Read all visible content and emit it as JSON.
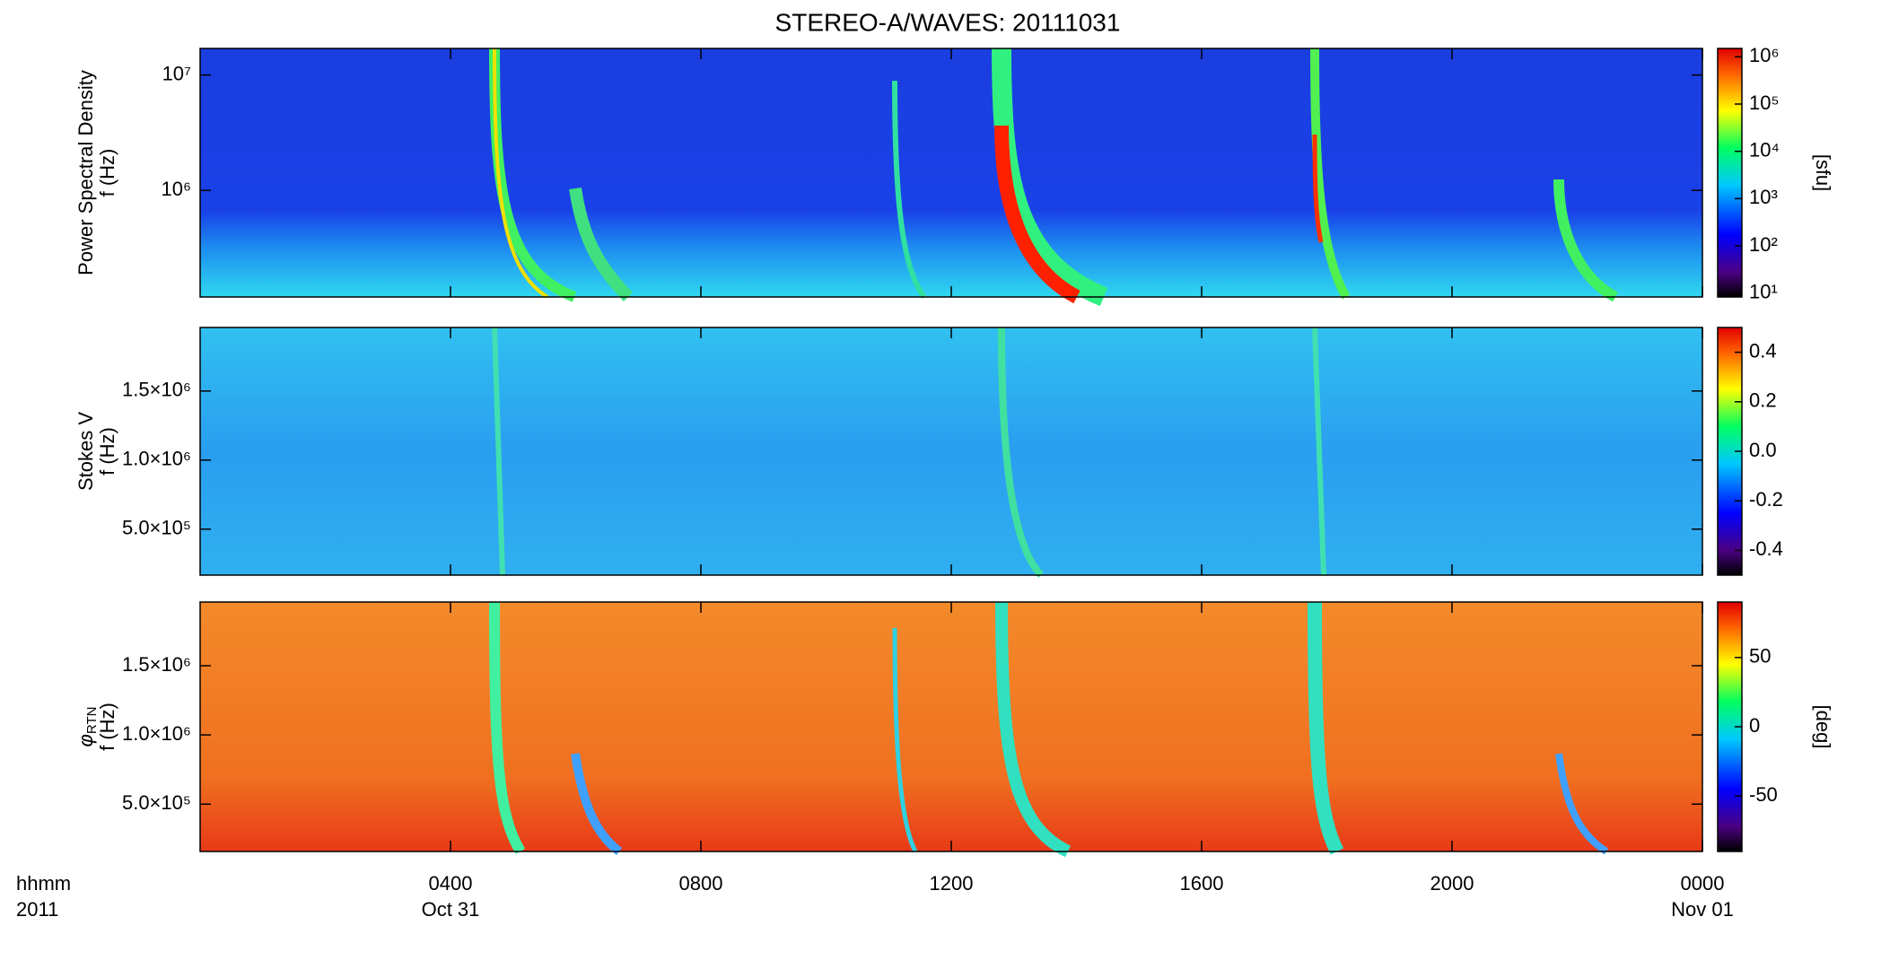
{
  "chart_data": [
    {
      "type": "heatmap",
      "title": "STEREO-A/WAVES: 20111031",
      "y_label": [
        "Power Spectral Density",
        "f (Hz)"
      ],
      "ylog": true,
      "ylim": [
        119000,
        17000000
      ],
      "yticks": [
        {
          "value": 1000000,
          "label": "10⁶"
        },
        {
          "value": 10000000,
          "label": "10⁷"
        }
      ],
      "clog": true,
      "clim": [
        8.3,
        1500000
      ],
      "cticks": [
        {
          "value": 10,
          "label": "10¹"
        },
        {
          "value": 100,
          "label": "10²"
        },
        {
          "value": 1000,
          "label": "10³"
        },
        {
          "value": 10000,
          "label": "10⁴"
        },
        {
          "value": 100000,
          "label": "10⁵"
        },
        {
          "value": 1000000,
          "label": "10⁶"
        }
      ],
      "colorbar_label": "[sfu]"
    },
    {
      "type": "heatmap",
      "y_label": [
        "Stokes V",
        "f (Hz)"
      ],
      "ylog": false,
      "ylim": [
        167000,
        1960000
      ],
      "yticks": [
        {
          "value": 500000,
          "label": "5.0×10⁵"
        },
        {
          "value": 1000000,
          "label": "1.0×10⁶"
        },
        {
          "value": 1500000,
          "label": "1.5×10⁶"
        }
      ],
      "clog": false,
      "clim": [
        -0.5,
        0.5
      ],
      "cticks": [
        -0.4,
        -0.2,
        {
          "value": 0,
          "label": "0.0"
        },
        0.2,
        0.4
      ]
    },
    {
      "type": "heatmap",
      "y_label_symbol": "φ",
      "y_label_subscript": "RTN",
      "y_label": [
        "f (Hz)"
      ],
      "ylog": false,
      "ylim": [
        158000,
        1960000
      ],
      "yticks": [
        {
          "value": 500000,
          "label": "5.0×10⁵"
        },
        {
          "value": 1000000,
          "label": "1.0×10⁶"
        },
        {
          "value": 1500000,
          "label": "1.5×10⁶"
        }
      ],
      "clog": false,
      "clim": [
        -90,
        90
      ],
      "cticks": [
        -50,
        0,
        50
      ],
      "colorbar_label": "[deg]",
      "xlim": [
        0,
        24
      ],
      "xticks": [
        {
          "value": 4,
          "label": "0400"
        },
        {
          "value": 8,
          "label": "0800"
        },
        {
          "value": 12,
          "label": "1200"
        },
        {
          "value": 16,
          "label": "1600"
        },
        {
          "value": 20,
          "label": "2000"
        },
        {
          "value": 24,
          "label": "0000"
        }
      ],
      "x_date_labels": [
        {
          "value": 4,
          "label": "Oct 31"
        },
        {
          "value": 24,
          "label": "Nov 01"
        }
      ],
      "x_axis_label": [
        "hhmm",
        "2011"
      ]
    }
  ]
}
